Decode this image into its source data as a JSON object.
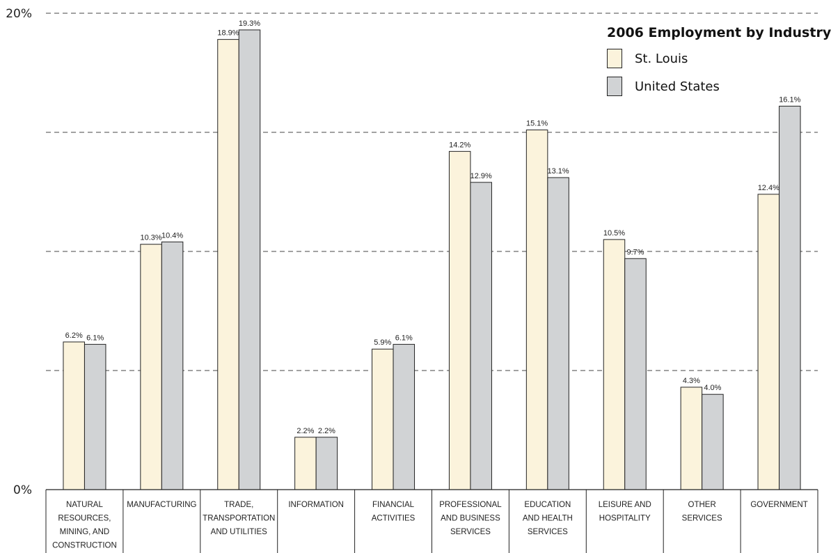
{
  "chart_data": {
    "type": "bar",
    "title": "2006 Employment by Industry",
    "categories": [
      [
        "NATURAL",
        "RESOURCES,",
        "MINING, AND",
        "CONSTRUCTION"
      ],
      [
        "MANUFACTURING"
      ],
      [
        "TRADE,",
        "TRANSPORTATION",
        "AND UTILITIES"
      ],
      [
        "INFORMATION"
      ],
      [
        "FINANCIAL",
        "ACTIVITIES"
      ],
      [
        "PROFESSIONAL",
        "AND BUSINESS",
        "SERVICES"
      ],
      [
        "EDUCATION",
        "AND HEALTH",
        "SERVICES"
      ],
      [
        "LEISURE AND",
        "HOSPITALITY"
      ],
      [
        "OTHER",
        "SERVICES"
      ],
      [
        "GOVERNMENT"
      ]
    ],
    "series": [
      {
        "name": "St. Louis",
        "color": "#fbf3dc",
        "values": [
          6.2,
          10.3,
          18.9,
          2.2,
          5.9,
          14.2,
          15.1,
          10.5,
          4.3,
          12.4
        ]
      },
      {
        "name": "United States",
        "color": "#d1d3d5",
        "values": [
          6.1,
          10.4,
          19.3,
          2.2,
          6.1,
          12.9,
          13.1,
          9.7,
          4.0,
          16.1
        ]
      }
    ],
    "ylim": [
      0,
      20
    ],
    "y_tick_labels": [
      {
        "value": 0,
        "label": "0%"
      },
      {
        "value": 20,
        "label": "20%"
      }
    ],
    "gridlines": [
      5,
      10,
      15,
      20
    ],
    "grid": "dashed",
    "legend": "top-right",
    "value_suffix": "%"
  }
}
